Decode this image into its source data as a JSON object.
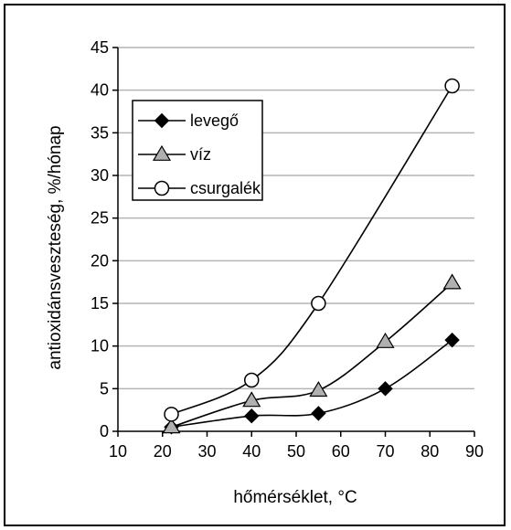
{
  "chart_data": {
    "type": "line",
    "xlabel": "hőmérséklet, °C",
    "ylabel": "antioxidánsveszteség, %/hónap",
    "xlim": [
      10,
      90
    ],
    "ylim": [
      0,
      45
    ],
    "xticks": [
      10,
      20,
      30,
      40,
      50,
      60,
      70,
      80,
      90
    ],
    "yticks": [
      0,
      5,
      10,
      15,
      20,
      25,
      30,
      35,
      40,
      45
    ],
    "grid": "horizontal",
    "legend_position": "top-left",
    "series": [
      {
        "name": "levegő",
        "marker": "diamond",
        "marker_color": "#000000",
        "x": [
          22,
          40,
          55,
          70,
          85
        ],
        "y": [
          0.5,
          1.8,
          2.1,
          5.0,
          10.7
        ]
      },
      {
        "name": "víz",
        "marker": "triangle",
        "marker_color": "#b0b0b0",
        "x": [
          22,
          40,
          55,
          70,
          85
        ],
        "y": [
          0.5,
          3.6,
          4.8,
          10.5,
          17.4
        ]
      },
      {
        "name": "csurgalék",
        "marker": "circle",
        "marker_color": "#ffffff",
        "x": [
          22,
          40,
          55,
          85
        ],
        "y": [
          2.0,
          6.0,
          15.0,
          40.5
        ]
      }
    ],
    "colors": {
      "line": "#000000",
      "grid": "#b4b4b4"
    }
  }
}
